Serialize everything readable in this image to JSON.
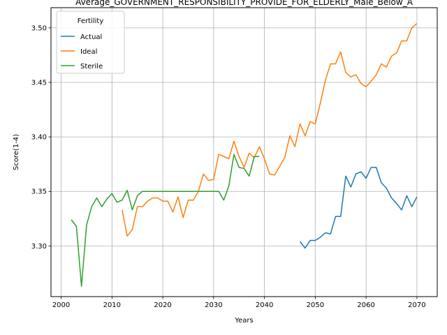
{
  "chart_data": {
    "type": "line",
    "title": "Average_GOVERNMENT_RESPONSIBILITY_PROVIDE_FOR_ELDERLY_Male_Below_A",
    "xlabel": "Years",
    "ylabel": "Score(1-4)",
    "xlim": [
      1998,
      2074
    ],
    "ylim": [
      3.2535,
      3.5185
    ],
    "xticks": [
      2000,
      2010,
      2020,
      2030,
      2040,
      2050,
      2060,
      2070
    ],
    "yticks": [
      3.3,
      3.35,
      3.4,
      3.45,
      3.5
    ],
    "ytick_labels": [
      "3.30",
      "3.35",
      "3.40",
      "3.45",
      "3.50"
    ],
    "grid": true,
    "legend": {
      "title": "Fertility",
      "position": "top-left"
    },
    "series": [
      {
        "name": "Actual",
        "color": "#1f77b4",
        "x": [
          2047,
          2048,
          2049,
          2050,
          2051,
          2052,
          2053,
          2054,
          2055,
          2056,
          2057,
          2058,
          2059,
          2060,
          2061,
          2062,
          2063,
          2064,
          2065,
          2066,
          2067,
          2068,
          2069,
          2070
        ],
        "y": [
          3.304,
          3.298,
          3.305,
          3.305,
          3.308,
          3.312,
          3.311,
          3.327,
          3.327,
          3.364,
          3.354,
          3.366,
          3.368,
          3.362,
          3.372,
          3.372,
          3.358,
          3.353,
          3.344,
          3.339,
          3.333,
          3.346,
          3.336,
          3.345
        ]
      },
      {
        "name": "Ideal",
        "color": "#ff7f0e",
        "x": [
          2012,
          2013,
          2014,
          2015,
          2016,
          2017,
          2018,
          2019,
          2020,
          2021,
          2022,
          2023,
          2024,
          2025,
          2026,
          2027,
          2028,
          2029,
          2030,
          2031,
          2032,
          2033,
          2034,
          2035,
          2036,
          2037,
          2038,
          2039,
          2040,
          2041,
          2042,
          2043,
          2044,
          2045,
          2046,
          2047,
          2048,
          2049,
          2050,
          2051,
          2052,
          2053,
          2054,
          2055,
          2056,
          2057,
          2058,
          2059,
          2060,
          2061,
          2062,
          2063,
          2064,
          2065,
          2066,
          2067,
          2068,
          2069,
          2070
        ],
        "y": [
          3.333,
          3.309,
          3.315,
          3.336,
          3.336,
          3.341,
          3.344,
          3.344,
          3.341,
          3.341,
          3.331,
          3.345,
          3.326,
          3.342,
          3.342,
          3.35,
          3.366,
          3.36,
          3.361,
          3.384,
          3.382,
          3.38,
          3.396,
          3.382,
          3.372,
          3.385,
          3.381,
          3.391,
          3.38,
          3.366,
          3.365,
          3.373,
          3.381,
          3.401,
          3.391,
          3.412,
          3.401,
          3.414,
          3.412,
          3.431,
          3.452,
          3.467,
          3.467,
          3.478,
          3.459,
          3.455,
          3.457,
          3.449,
          3.446,
          3.451,
          3.457,
          3.467,
          3.464,
          3.474,
          3.477,
          3.488,
          3.488,
          3.5,
          3.504
        ]
      },
      {
        "name": "Sterile",
        "color": "#2ca02c",
        "x": [
          2002,
          2003,
          2004,
          2005,
          2006,
          2007,
          2008,
          2009,
          2010,
          2011,
          2012,
          2013,
          2014,
          2015,
          2016,
          2017,
          2018,
          2019,
          2020,
          2021,
          2022,
          2023,
          2024,
          2025,
          2026,
          2027,
          2028,
          2029,
          2030,
          2031,
          2032,
          2033,
          2034,
          2035,
          2036,
          2037,
          2038,
          2039
        ],
        "y": [
          3.324,
          3.318,
          3.263,
          3.319,
          3.336,
          3.344,
          3.336,
          3.343,
          3.348,
          3.34,
          3.342,
          3.351,
          3.333,
          3.346,
          3.35,
          3.35,
          3.35,
          3.35,
          3.35,
          3.35,
          3.35,
          3.35,
          3.35,
          3.35,
          3.35,
          3.35,
          3.35,
          3.35,
          3.35,
          3.35,
          3.342,
          3.355,
          3.384,
          3.372,
          3.371,
          3.364,
          3.382,
          3.382
        ]
      }
    ]
  }
}
